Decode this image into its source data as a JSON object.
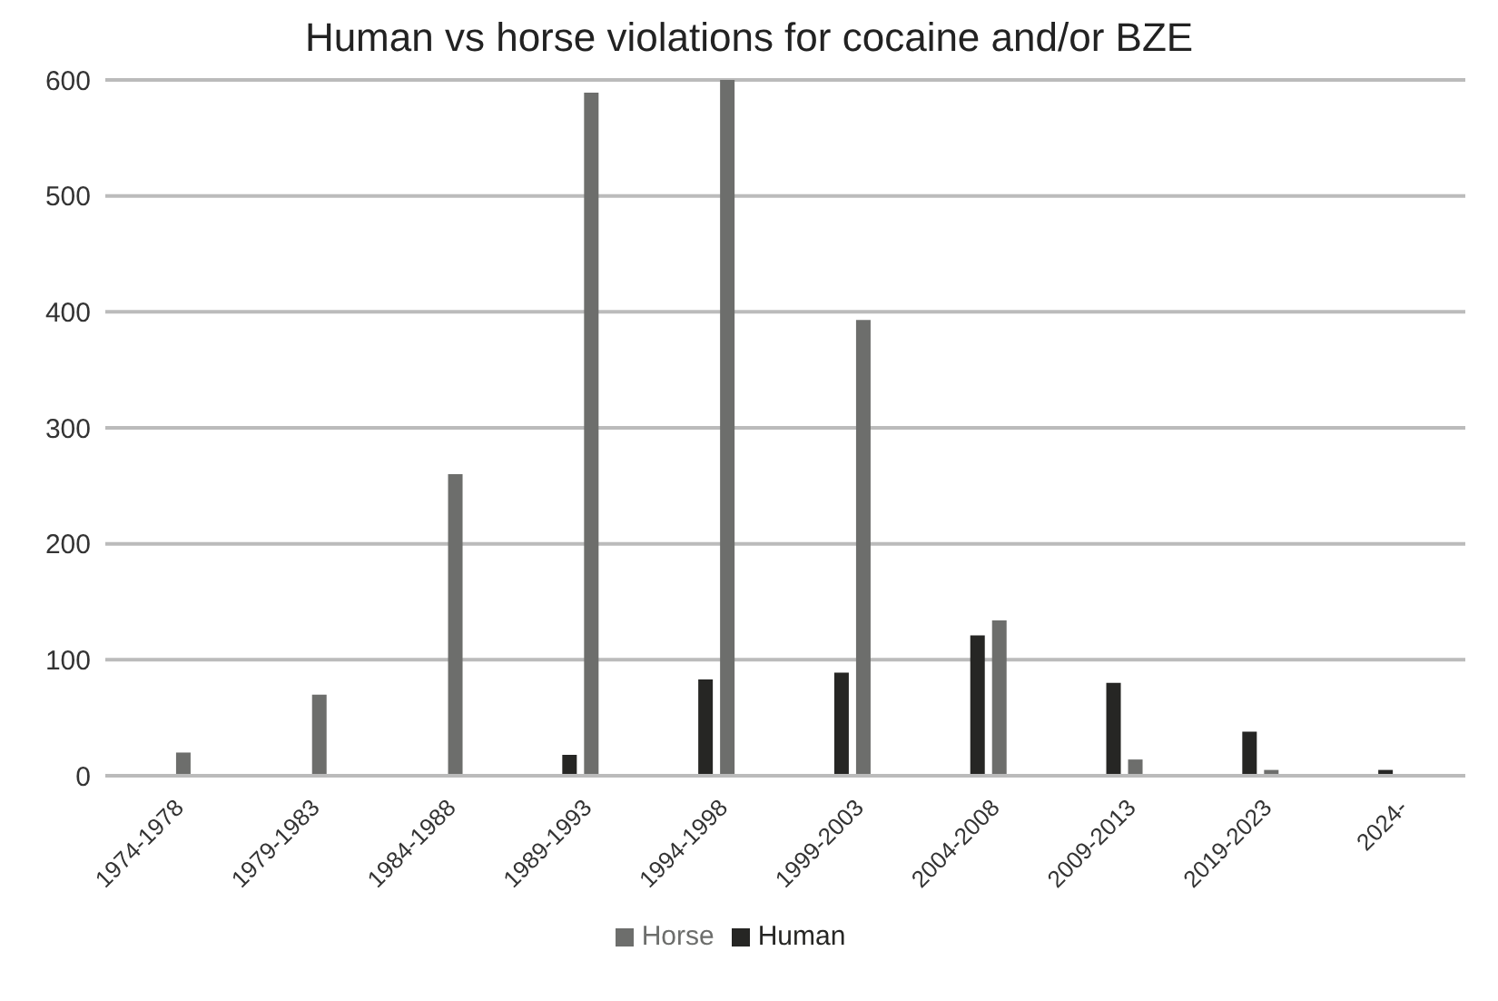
{
  "chart_data": {
    "type": "bar",
    "title": "Human vs horse violations for cocaine and/or BZE",
    "categories": [
      "1974-1978",
      "1979-1983",
      "1984-1988",
      "1989-1993",
      "1994-1998",
      "1999-2003",
      "2004-2008",
      "2009-2013",
      "2019-2023",
      "2024-"
    ],
    "series": [
      {
        "name": "Human",
        "color": "#262624",
        "values": [
          null,
          null,
          null,
          18,
          83,
          89,
          121,
          80,
          38,
          5
        ]
      },
      {
        "name": "Horse",
        "color": "#6d6e6c",
        "values": [
          20,
          70,
          260,
          589,
          600,
          393,
          134,
          14,
          5,
          null
        ]
      }
    ],
    "ylim": [
      0,
      600
    ],
    "yticks": [
      0,
      100,
      200,
      300,
      400,
      500,
      600
    ],
    "grid": "y",
    "legend": "bottom"
  }
}
